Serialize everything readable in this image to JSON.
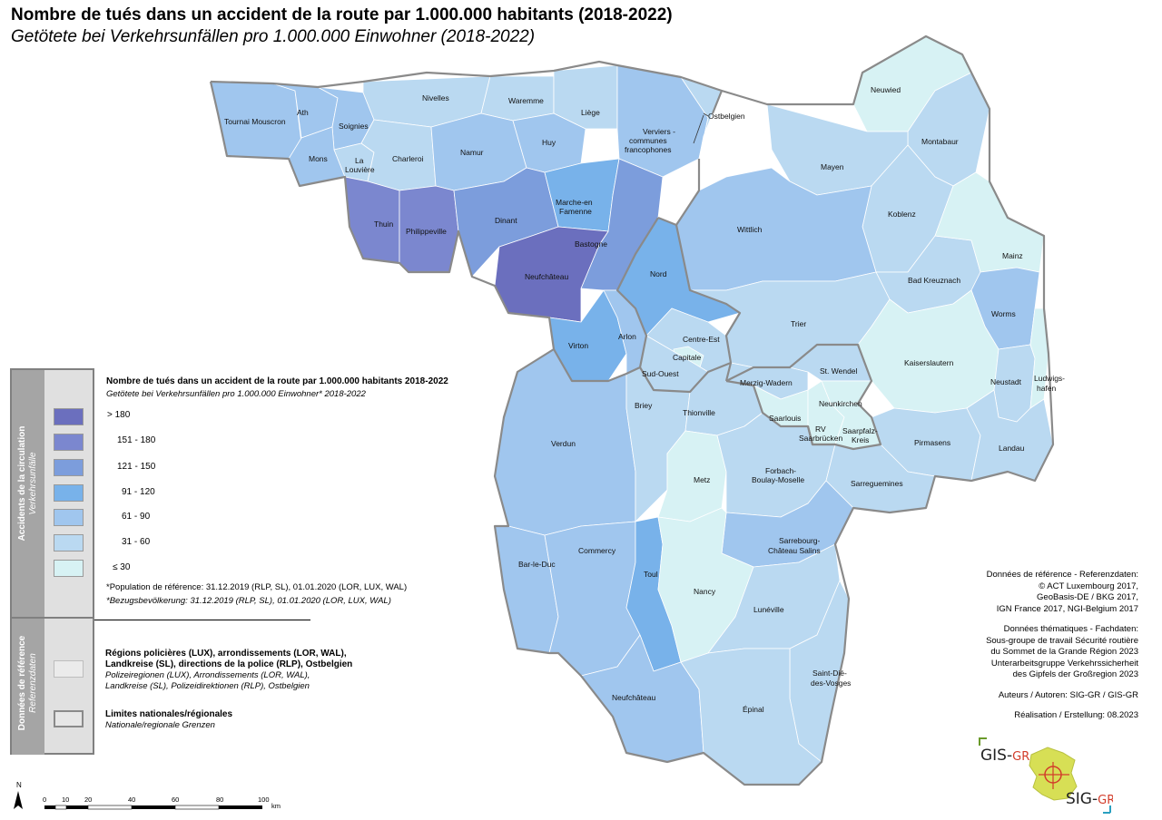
{
  "title": {
    "fr": "Nombre de tués dans un accident de la route par 1.000.000 habitants (2018-2022)",
    "de": "Getötete bei Verkehrsunfällen pro 1.000.000 Einwohner (2018-2022)"
  },
  "legend": {
    "section1": {
      "fr": "Accidents de la circulation",
      "de": "Verkehrsunfälle"
    },
    "section2": {
      "fr": "Données de référence",
      "de": "Referenzdaten"
    },
    "title_fr": "Nombre de tués dans un accident de la route par 1.000.000 habitants 2018-2022",
    "title_de": "Getötete bei Verkehrsunfällen pro 1.000.000 Einwohner* 2018-2022",
    "classes": [
      {
        "label": "> 180",
        "color": "#6b6fbe"
      },
      {
        "label": "151 - 180",
        "color": "#7b87cf"
      },
      {
        "label": "121 - 150",
        "color": "#7c9ddc"
      },
      {
        "label": "91 - 120",
        "color": "#78b2ea"
      },
      {
        "label": "61 - 90",
        "color": "#a0c6ee"
      },
      {
        "label": "31 - 60",
        "color": "#bad9f1"
      },
      {
        "label": "≤ 30",
        "color": "#d7f2f4"
      }
    ],
    "population_fr": "*Population de référence: 31.12.2019 (RLP, SL), 01.01.2020 (LOR, LUX, WAL)",
    "population_de": "*Bezugsbevölkerung: 31.12.2019 (RLP, SL), 01.01.2020 (LOR, LUX, WAL)",
    "ref_regions_fr1": "Régions policières (LUX), arrondissements (LOR, WAL),",
    "ref_regions_fr2": "Landkreise (SL), directions de la police (RLP), Ostbelgien",
    "ref_regions_de1": "Polizeiregionen (LUX), Arrondissements (LOR, WAL),",
    "ref_regions_de2": "Landkreise (SL), Polizeidirektionen (RLP), Ostbelgien",
    "ref_borders_fr": "Limites nationales/régionales",
    "ref_borders_de": "Nationale/regionale Grenzen"
  },
  "credits": {
    "line1": "Données de référence - Referenzdaten:",
    "line2": "© ACT Luxembourg 2017,",
    "line3": "GeoBasis-DE / BKG 2017,",
    "line4": "IGN France 2017, NGI-Belgium 2017",
    "line5": "Données thématiques - Fachdaten:",
    "line6": "Sous-groupe de travail Sécurité routière",
    "line7": "du Sommet de la Grande Région 2023",
    "line8": "Unterarbeitsgruppe Verkehrssicherheit",
    "line9": "des Gipfels der Großregion 2023",
    "line10": "Auteurs / Autoren: SIG-GR / GIS-GR",
    "line11": "Réalisation / Erstellung: 08.2023"
  },
  "scale": {
    "ticks": [
      "0",
      "10",
      "20",
      "40",
      "60",
      "80",
      "100"
    ],
    "unit": "km",
    "north": "N"
  },
  "logo": {
    "top": "GIS-",
    "top_accent": "GR",
    "bottom": "SIG-",
    "bottom_accent": "GR"
  },
  "regions": [
    "Tournai Mouscron",
    "Ath",
    "Soignies",
    "Nivelles",
    "Waremme",
    "Liège",
    "Ostbelgien",
    "Verviers - communes francophones",
    "Mons",
    "La Louvière",
    "Charleroi",
    "Namur",
    "Huy",
    "Thuin",
    "Philippeville",
    "Dinant",
    "Marche-en-Famenne",
    "Bastogne",
    "Neufchâteau",
    "Virton",
    "Arlon",
    "Nord",
    "Centre-Est",
    "Capitale",
    "Sud-Ouest",
    "Neuwied",
    "Montabaur",
    "Mayen",
    "Koblenz",
    "Wittlich",
    "Bad Kreuznach",
    "Mainz",
    "Trier",
    "Worms",
    "Kaiserslautern",
    "Merzig-Wadern",
    "St. Wendel",
    "Neunkirchen",
    "Saarlouis",
    "RV Saarbrücken",
    "Saarpfalz-Kreis",
    "Neustadt",
    "Ludwigshafen",
    "Pirmasens",
    "Landau",
    "Verdun",
    "Briey",
    "Thionville",
    "Metz",
    "Forbach-Boulay-Moselle",
    "Sarreguemines",
    "Sarrebourg-Château Salins",
    "Bar-le-Duc",
    "Commercy",
    "Toul",
    "Nancy",
    "Lunéville",
    "Saint-Dié-des-Vosges",
    "Neufchâteau",
    "Épinal"
  ]
}
